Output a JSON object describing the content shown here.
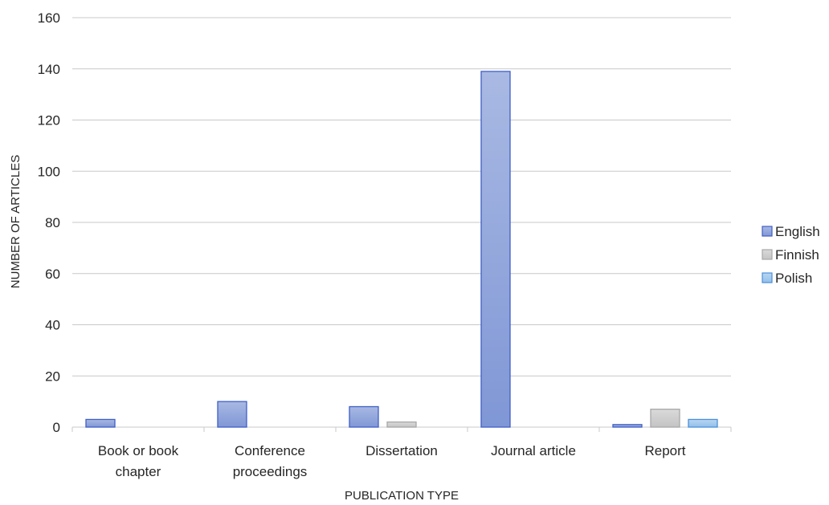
{
  "chart_data": {
    "type": "bar",
    "title": "",
    "xlabel": "PUBLICATION TYPE",
    "ylabel": "NUMBER OF ARTICLES",
    "categories": [
      [
        "Book or book",
        "chapter"
      ],
      [
        "Conference",
        "proceedings"
      ],
      [
        "Dissertation"
      ],
      [
        "Journal article"
      ],
      [
        "Report"
      ]
    ],
    "series": [
      {
        "name": "English",
        "values": [
          3,
          10,
          8,
          139,
          1
        ],
        "color": "#95A9DC",
        "stroke": "#3F5FC6"
      },
      {
        "name": "Finnish",
        "values": [
          0,
          0,
          2,
          0,
          7
        ],
        "color": "#D0D0D0",
        "stroke": "#A8A8A8"
      },
      {
        "name": "Polish",
        "values": [
          0,
          0,
          0,
          0,
          3
        ],
        "color": "#A9CDEE",
        "stroke": "#4A90D9"
      }
    ],
    "ylim": [
      0,
      160
    ],
    "yticks": [
      0,
      20,
      40,
      60,
      80,
      100,
      120,
      140,
      160
    ],
    "grid": true,
    "legend_position": "right"
  }
}
